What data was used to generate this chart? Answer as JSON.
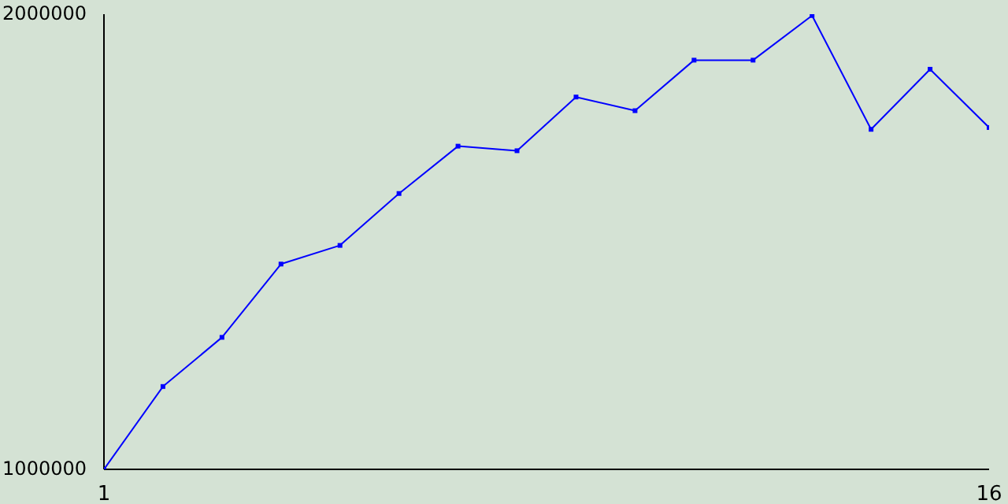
{
  "chart_data": {
    "type": "line",
    "x": [
      1,
      2,
      3,
      4,
      5,
      6,
      7,
      8,
      9,
      10,
      11,
      12,
      13,
      14,
      15,
      16
    ],
    "series": [
      {
        "color": "#0000ff",
        "values": [
          1000000,
          1182000,
          1290000,
          1451000,
          1492000,
          1606000,
          1710000,
          1700000,
          1818000,
          1788000,
          1899000,
          1899000,
          1997000,
          1747000,
          1879000,
          1751000
        ]
      }
    ],
    "xlim": [
      1,
      16
    ],
    "xticks": [
      1,
      16
    ],
    "ylim": [
      1000000,
      2000000
    ],
    "yticks": [
      1000000,
      2000000
    ],
    "grid": false,
    "legend": false,
    "marker": "square",
    "line_style": "solid"
  }
}
